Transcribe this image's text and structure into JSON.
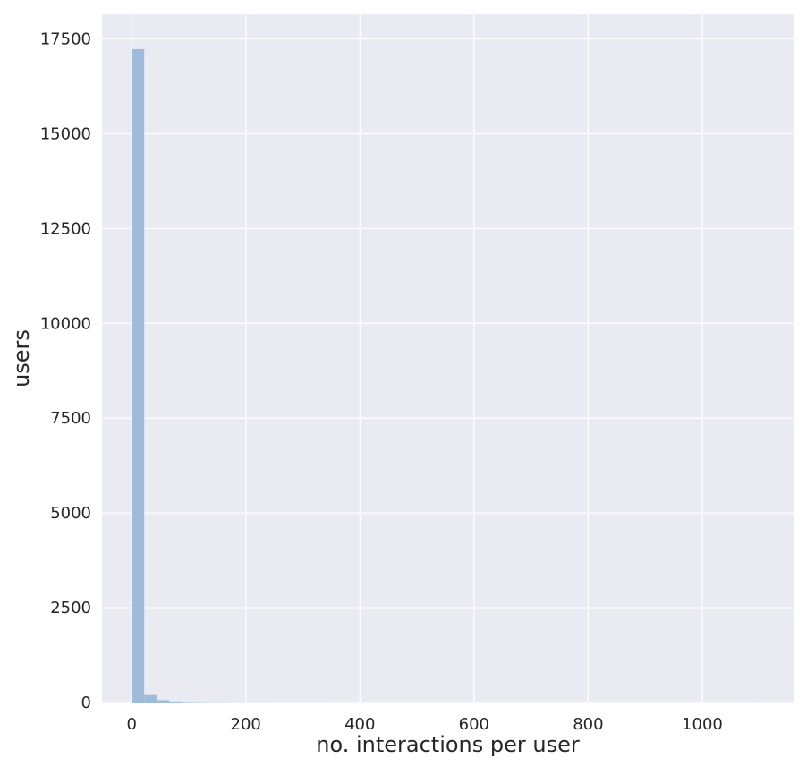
{
  "chart_data": {
    "type": "bar",
    "title": "",
    "xlabel": "no. interactions per user",
    "ylabel": "users",
    "xlim": [
      -52,
      1160
    ],
    "ylim": [
      0,
      18150
    ],
    "x_ticks": [
      0,
      200,
      400,
      600,
      800,
      1000
    ],
    "y_ticks": [
      0,
      2500,
      5000,
      7500,
      10000,
      12500,
      15000,
      17500
    ],
    "grid": true,
    "legend": "none",
    "bin_width": 22,
    "x": [
      0,
      22,
      44,
      66,
      88,
      110,
      132,
      154,
      176,
      198,
      220,
      242,
      264,
      286,
      308,
      330,
      352,
      374,
      396,
      418,
      440,
      462,
      484,
      506,
      528,
      550,
      572,
      594,
      616,
      638,
      660,
      682,
      704,
      726,
      748,
      770,
      792,
      814,
      836,
      858,
      880,
      902,
      924,
      946,
      968,
      990,
      1012,
      1034,
      1056,
      1078
    ],
    "values": [
      17230,
      220,
      60,
      25,
      12,
      8,
      5,
      4,
      3,
      2,
      2,
      1,
      1,
      1,
      1,
      1,
      0,
      0,
      1,
      0,
      0,
      0,
      0,
      0,
      0,
      0,
      0,
      0,
      0,
      0,
      0,
      0,
      0,
      0,
      0,
      0,
      0,
      0,
      0,
      0,
      0,
      0,
      0,
      0,
      0,
      0,
      0,
      0,
      0,
      1
    ],
    "colors": {
      "bar": "#9ebcda",
      "plot_background": "#eaeaf2",
      "grid": "#ffffff",
      "text": "#262626"
    }
  }
}
